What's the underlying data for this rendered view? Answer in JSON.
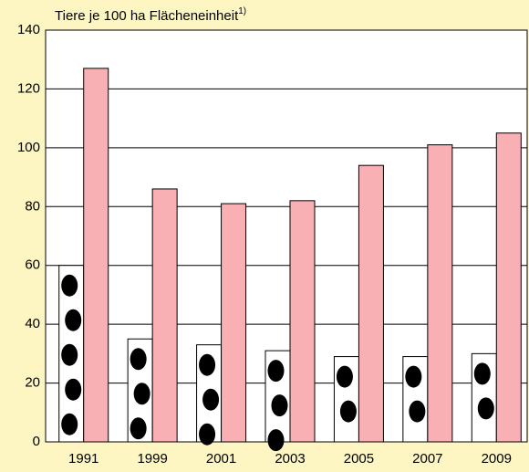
{
  "chart_data": {
    "type": "bar",
    "y_label": "Tiere je 100 ha Flächeneinheit",
    "y_label_note": "1)",
    "categories": [
      "1991",
      "1999",
      "2001",
      "2003",
      "2005",
      "2007",
      "2009"
    ],
    "series": [
      {
        "color": "#ffffff",
        "values": [
          60,
          35,
          33,
          31,
          29,
          29,
          30
        ]
      },
      {
        "color": "#f9b0b4",
        "values": [
          127,
          86,
          81,
          82,
          94,
          101,
          105
        ]
      }
    ],
    "ylim": [
      0,
      140
    ],
    "yticks": [
      0,
      20,
      40,
      60,
      80,
      100,
      120,
      140
    ],
    "grid": true
  }
}
